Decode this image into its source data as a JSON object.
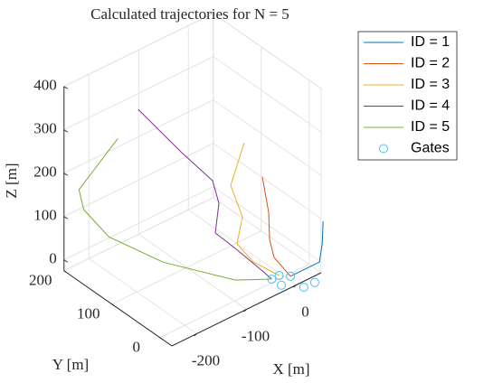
{
  "chart_data": {
    "type": "line3d",
    "title": "Calculated trajectories for N = 5",
    "xlabel": "X [m]",
    "ylabel": "Y [m]",
    "zlabel": "Z [m]",
    "xlim": [
      -250,
      50
    ],
    "ylim": [
      -25,
      200
    ],
    "zlim": [
      -25,
      400
    ],
    "xticks": [
      -200,
      -100,
      0
    ],
    "yticks": [
      0,
      100,
      200
    ],
    "zticks": [
      0,
      100,
      200,
      300,
      400
    ],
    "grid": true,
    "legend": "outside-top-right",
    "series": [
      {
        "name": "ID = 1",
        "color": "#0072BD",
        "x": [
          58.8,
          57,
          51.4,
          -3
        ],
        "y": [
          -20,
          -20,
          -20,
          -16
        ],
        "z": [
          85,
          34,
          -5,
          -10
        ]
      },
      {
        "name": "ID = 2",
        "color": "#D95319",
        "x": [
          -53.7,
          -41,
          -39.2,
          -30.1,
          -3
        ],
        "y": [
          -10,
          -10,
          -10,
          -10,
          -16
        ],
        "z": [
          243,
          154,
          91,
          44,
          -10
        ]
      },
      {
        "name": "ID = 3",
        "color": "#EDB120",
        "x": [
          -80.5,
          -107.7,
          -84.1,
          -95,
          -62.3,
          -15
        ],
        "y": [
          0,
          0,
          0,
          0,
          0,
          -5
        ],
        "z": [
          329,
          246,
          160,
          104,
          44,
          -10
        ]
      },
      {
        "name": "ID = 4",
        "color": "#7E2F8E",
        "x": [
          -149,
          -92,
          -47.7,
          -54.3,
          -80.8,
          -60,
          -34.5,
          -30
        ],
        "y": [
          150,
          120,
          100,
          80,
          60,
          40,
          10,
          -5
        ],
        "z": [
          329,
          222,
          146,
          113,
          75,
          43,
          0,
          -10
        ]
      },
      {
        "name": "ID = 5",
        "color": "#77AC30",
        "x": [
          -190,
          -220,
          -215,
          -158,
          -137,
          -82,
          -30
        ],
        "y": [
          150,
          200,
          195,
          202,
          111,
          17,
          -5
        ],
        "z": [
          285,
          145,
          100,
          0,
          0,
          0,
          -10
        ]
      }
    ],
    "gates": {
      "name": "Gates",
      "color": "#4DBEEE",
      "x": [
        -30,
        -15,
        -3,
        -29,
        -6,
        15
      ],
      "y": [
        -5,
        -5,
        -16,
        -24,
        -47,
        -48
      ],
      "z": [
        -10,
        -10,
        -10,
        -10,
        -10,
        -10
      ]
    }
  }
}
